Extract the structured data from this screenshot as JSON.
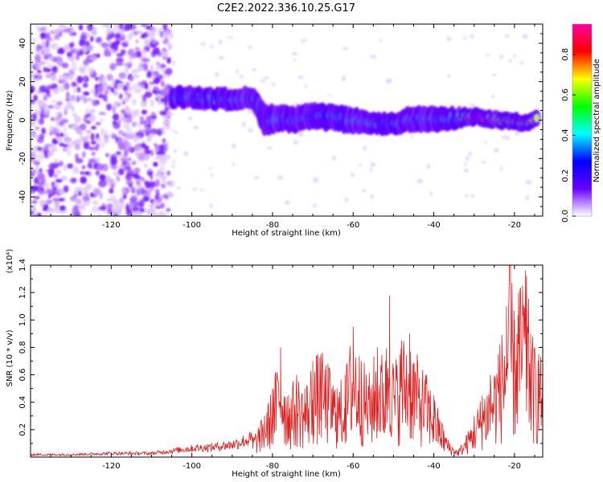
{
  "title": "C2E2.2022.336.10.25.G17",
  "chart_data": [
    {
      "type": "heatmap",
      "xlabel": "Height of straight line (km)",
      "ylabel": "Frequency (Hz)",
      "xlim": [
        -140,
        -13
      ],
      "ylim": [
        -50,
        50
      ],
      "x_ticks": [
        -120,
        -100,
        -80,
        -60,
        -40,
        -20
      ],
      "y_ticks": [
        -40,
        -20,
        0,
        20,
        40
      ],
      "colorbar": {
        "label": "Normalized spectral amplitude",
        "range": [
          0,
          0.95
        ],
        "ticks": [
          0.0,
          0.2,
          0.4,
          0.6,
          0.8
        ],
        "tick_labels": [
          "0.0",
          "0.2",
          "0.4",
          "0.6",
          "0.8"
        ],
        "colors": [
          "#ffffff",
          "#6a00ff",
          "#0000ff",
          "#00ffff",
          "#00ff00",
          "#ffff00",
          "#ff0000",
          "#ff00a0"
        ]
      },
      "noise_region": {
        "x_range": [
          -140,
          -105
        ],
        "freq_range": [
          -50,
          50
        ],
        "level": "low"
      },
      "signal_band": [
        {
          "x": -105,
          "freq": 12,
          "width": 4,
          "level": 0.3
        },
        {
          "x": -100,
          "freq": 12,
          "width": 4,
          "level": 0.35
        },
        {
          "x": -95,
          "freq": 11,
          "width": 4,
          "level": 0.4
        },
        {
          "x": -90,
          "freq": 11,
          "width": 4,
          "level": 0.35
        },
        {
          "x": -85,
          "freq": 12,
          "width": 4,
          "level": 0.3
        },
        {
          "x": -82,
          "freq": 0,
          "width": 6,
          "level": 0.25
        },
        {
          "x": -78,
          "freq": 1,
          "width": 5,
          "level": 0.5
        },
        {
          "x": -75,
          "freq": 0,
          "width": 5,
          "level": 0.4
        },
        {
          "x": -70,
          "freq": 2,
          "width": 5,
          "level": 0.4
        },
        {
          "x": -65,
          "freq": 1,
          "width": 5,
          "level": 0.35
        },
        {
          "x": -60,
          "freq": 0,
          "width": 5,
          "level": 0.35
        },
        {
          "x": -55,
          "freq": -2,
          "width": 4,
          "level": 0.45
        },
        {
          "x": -50,
          "freq": -2,
          "width": 4,
          "level": 0.4
        },
        {
          "x": -45,
          "freq": 1,
          "width": 5,
          "level": 0.4
        },
        {
          "x": -40,
          "freq": 0,
          "width": 5,
          "level": 0.4
        },
        {
          "x": -35,
          "freq": 1,
          "width": 4,
          "level": 0.35
        },
        {
          "x": -31,
          "freq": 2,
          "width": 3,
          "level": 0.85
        },
        {
          "x": -28,
          "freq": 1,
          "width": 3,
          "level": 0.9
        },
        {
          "x": -24,
          "freq": 0,
          "width": 3,
          "level": 0.6
        },
        {
          "x": -20,
          "freq": -1,
          "width": 3,
          "level": 0.8
        },
        {
          "x": -16,
          "freq": -1,
          "width": 3,
          "level": 0.7
        },
        {
          "x": -14,
          "freq": 2,
          "width": 3,
          "level": 0.5
        }
      ]
    },
    {
      "type": "line",
      "xlabel": "Height of straight line (km)",
      "ylabel": "SNR (10 * v/v)",
      "multiplier_label": "(x10⁴)",
      "xlim": [
        -140,
        -13
      ],
      "ylim": [
        0,
        1.4
      ],
      "x_ticks": [
        -120,
        -100,
        -80,
        -60,
        -40,
        -20
      ],
      "y_ticks": [
        0.2,
        0.4,
        0.6,
        0.8,
        1.0,
        1.2,
        1.4
      ],
      "y_tick_labels": [
        "0.2",
        "0.4",
        "0.6",
        "0.8",
        "1.0",
        "1.2",
        "1.4"
      ],
      "color": "#e02020",
      "series": [
        {
          "x": [
            -140,
            -130,
            -120,
            -110,
            -105,
            -100,
            -95,
            -90,
            -85,
            -82,
            -80,
            -78,
            -76,
            -74,
            -72,
            -70,
            -68,
            -66,
            -64,
            -62,
            -60,
            -58,
            -56,
            -54,
            -52,
            -51,
            -50,
            -48,
            -46,
            -44,
            -42,
            -40,
            -38,
            -36,
            -34,
            -32,
            -30,
            -28,
            -26,
            -24,
            -22,
            -21,
            -20,
            -19,
            -18,
            -17,
            -16,
            -15,
            -14,
            -13
          ],
          "y": [
            0.02,
            0.02,
            0.03,
            0.03,
            0.05,
            0.07,
            0.08,
            0.1,
            0.15,
            0.3,
            0.5,
            0.8,
            0.45,
            0.6,
            0.5,
            0.7,
            0.75,
            0.65,
            0.5,
            0.6,
            0.95,
            0.7,
            0.6,
            0.8,
            0.7,
            1.18,
            0.65,
            0.85,
            0.9,
            0.7,
            0.6,
            0.45,
            0.25,
            0.1,
            0.05,
            0.15,
            0.3,
            0.45,
            0.6,
            0.75,
            1.1,
            1.4,
            1.0,
            1.2,
            1.25,
            1.32,
            0.9,
            0.8,
            0.75,
            0.7
          ]
        }
      ]
    }
  ]
}
